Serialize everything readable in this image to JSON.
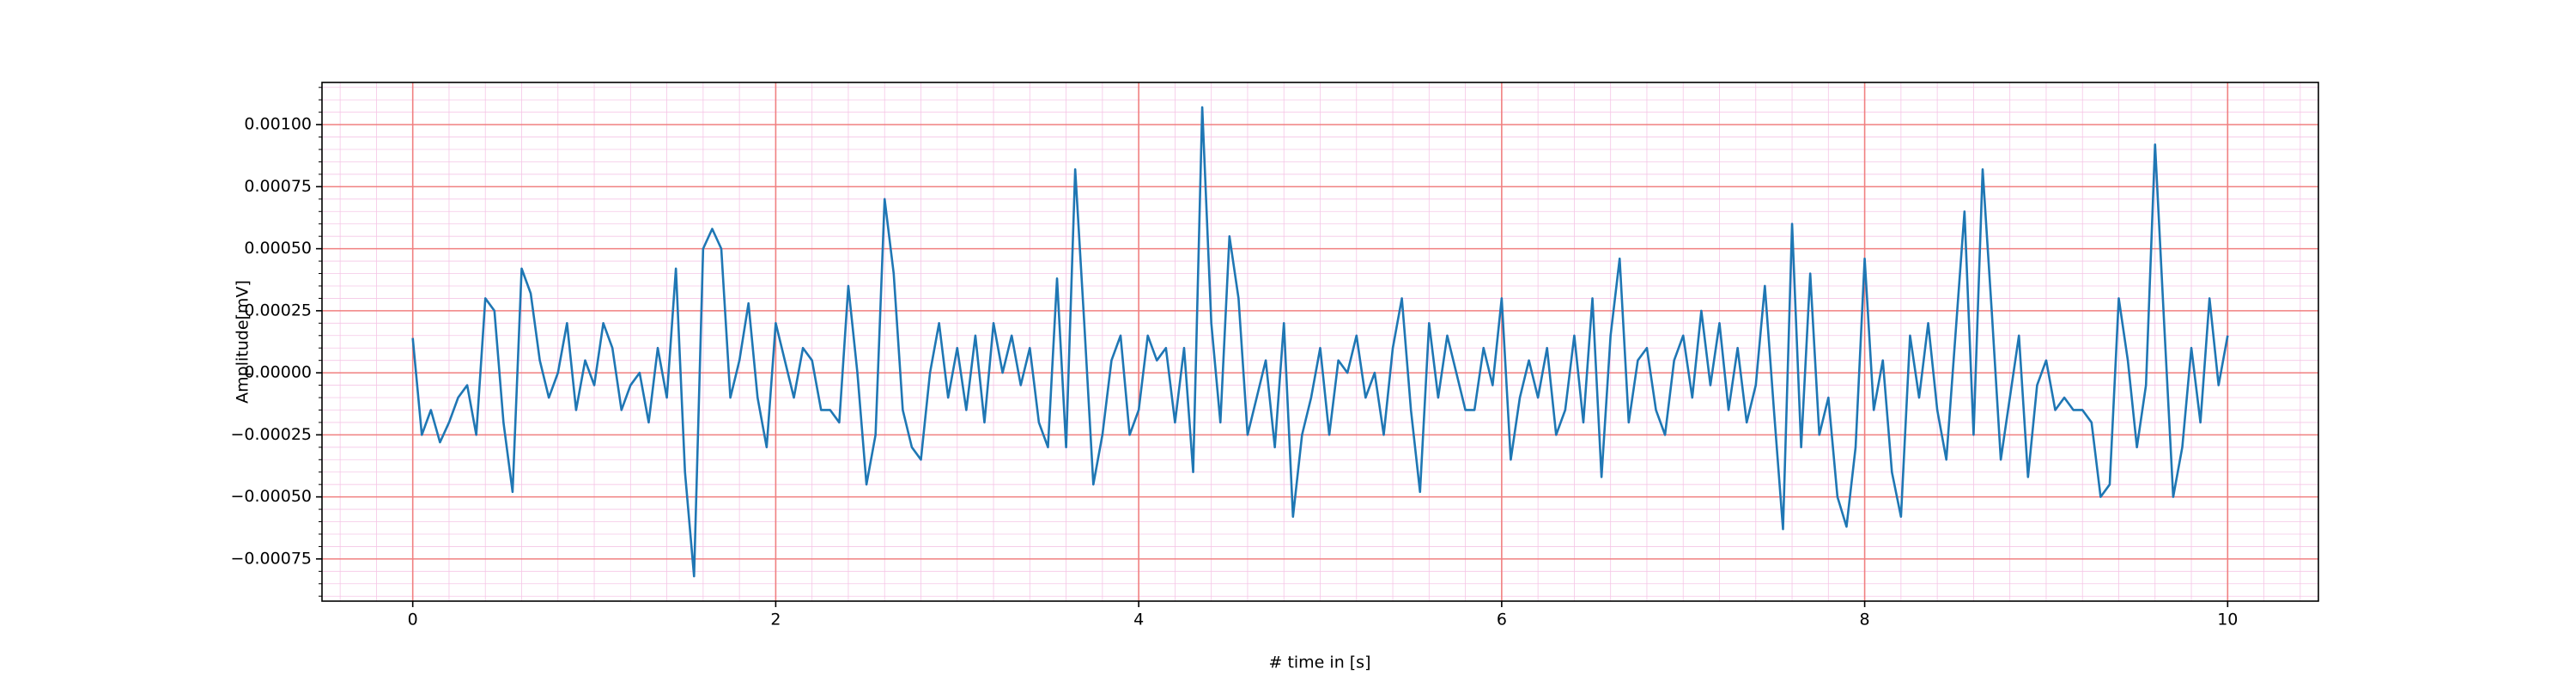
{
  "chart_data": {
    "type": "line",
    "xlabel": "# time in [s]",
    "ylabel": "Amplitude[mV]",
    "color": "#1f77b4",
    "grid": true,
    "xlim": [
      -0.5,
      10.5
    ],
    "ylim": [
      -0.00092,
      0.00117
    ],
    "xticks": [
      0,
      2,
      4,
      6,
      8,
      10
    ],
    "yticks": [
      {
        "value": -0.00075,
        "label": "−0.00075"
      },
      {
        "value": -0.0005,
        "label": "−0.00050"
      },
      {
        "value": -0.00025,
        "label": "−0.00025"
      },
      {
        "value": 0,
        "label": "0.00000"
      },
      {
        "value": 0.00025,
        "label": "0.00025"
      },
      {
        "value": 0.0005,
        "label": "0.00050"
      },
      {
        "value": 0.00075,
        "label": "0.00075"
      },
      {
        "value": 0.001,
        "label": "0.00100"
      }
    ],
    "x": [
      0,
      0.05,
      0.1,
      0.15,
      0.2,
      0.25,
      0.3,
      0.35,
      0.4,
      0.45,
      0.5,
      0.55,
      0.6,
      0.65,
      0.7,
      0.75,
      0.8,
      0.85,
      0.9,
      0.95,
      1,
      1.05,
      1.1,
      1.15,
      1.2,
      1.25,
      1.3,
      1.35,
      1.4,
      1.45,
      1.5,
      1.55,
      1.6,
      1.65,
      1.7,
      1.75,
      1.8,
      1.85,
      1.9,
      1.95,
      2,
      2.05,
      2.1,
      2.15,
      2.2,
      2.25,
      2.3,
      2.35,
      2.4,
      2.45,
      2.5,
      2.55,
      2.6,
      2.65,
      2.7,
      2.75,
      2.8,
      2.85,
      2.9,
      2.95,
      3,
      3.05,
      3.1,
      3.15,
      3.2,
      3.25,
      3.3,
      3.35,
      3.4,
      3.45,
      3.5,
      3.55,
      3.6,
      3.65,
      3.7,
      3.75,
      3.8,
      3.85,
      3.9,
      3.95,
      4,
      4.05,
      4.1,
      4.15,
      4.2,
      4.25,
      4.3,
      4.35,
      4.4,
      4.45,
      4.5,
      4.55,
      4.6,
      4.65,
      4.7,
      4.75,
      4.8,
      4.85,
      4.9,
      4.95,
      5,
      5.05,
      5.1,
      5.15,
      5.2,
      5.25,
      5.3,
      5.35,
      5.4,
      5.45,
      5.5,
      5.55,
      5.6,
      5.65,
      5.7,
      5.75,
      5.8,
      5.85,
      5.9,
      5.95,
      6,
      6.05,
      6.1,
      6.15,
      6.2,
      6.25,
      6.3,
      6.35,
      6.4,
      6.45,
      6.5,
      6.55,
      6.6,
      6.65,
      6.7,
      6.75,
      6.8,
      6.85,
      6.9,
      6.95,
      7,
      7.05,
      7.1,
      7.15,
      7.2,
      7.25,
      7.3,
      7.35,
      7.4,
      7.45,
      7.5,
      7.55,
      7.6,
      7.65,
      7.7,
      7.75,
      7.8,
      7.85,
      7.9,
      7.95,
      8,
      8.05,
      8.1,
      8.15,
      8.2,
      8.25,
      8.3,
      8.35,
      8.4,
      8.45,
      8.5,
      8.55,
      8.6,
      8.65,
      8.7,
      8.75,
      8.8,
      8.85,
      8.9,
      8.95,
      9,
      9.05,
      9.1,
      9.15,
      9.2,
      9.25,
      9.3,
      9.35,
      9.4,
      9.45,
      9.5,
      9.55,
      9.6,
      9.65,
      9.7,
      9.75,
      9.8,
      9.85,
      9.9,
      9.95,
      10
    ],
    "values": [
      0.00014,
      -0.00025,
      -0.00015,
      -0.00028,
      -0.0002,
      -0.0001,
      -5e-05,
      -0.00025,
      0.0003,
      0.00025,
      -0.0002,
      -0.00048,
      0.00042,
      0.00032,
      5e-05,
      -0.0001,
      0,
      0.0002,
      -0.00015,
      5e-05,
      -5e-05,
      0.0002,
      0.0001,
      -0.00015,
      -5e-05,
      0,
      -0.0002,
      0.0001,
      -0.0001,
      0.00042,
      -0.0004,
      -0.00082,
      0.0005,
      0.00058,
      0.0005,
      -0.0001,
      5e-05,
      0.00028,
      -0.0001,
      -0.0003,
      0.0002,
      5e-05,
      -0.0001,
      0.0001,
      5e-05,
      -0.00015,
      -0.00015,
      -0.0002,
      0.00035,
      0,
      -0.00045,
      -0.00025,
      0.0007,
      0.0004,
      -0.00015,
      -0.0003,
      -0.00035,
      0,
      0.0002,
      -0.0001,
      0.0001,
      -0.00015,
      0.00015,
      -0.0002,
      0.0002,
      0,
      0.00015,
      -5e-05,
      0.0001,
      -0.0002,
      -0.0003,
      0.00038,
      -0.0003,
      0.00082,
      0.0002,
      -0.00045,
      -0.00025,
      5e-05,
      0.00015,
      -0.00025,
      -0.00015,
      0.00015,
      5e-05,
      0.0001,
      -0.0002,
      0.0001,
      -0.0004,
      0.00107,
      0.0002,
      -0.0002,
      0.00055,
      0.0003,
      -0.00025,
      -0.0001,
      5e-05,
      -0.0003,
      0.0002,
      -0.00058,
      -0.00025,
      -0.0001,
      0.0001,
      -0.00025,
      5e-05,
      0,
      0.00015,
      -0.0001,
      0,
      -0.00025,
      0.0001,
      0.0003,
      -0.00015,
      -0.00048,
      0.0002,
      -0.0001,
      0.00015,
      0,
      -0.00015,
      -0.00015,
      0.0001,
      -5e-05,
      0.0003,
      -0.00035,
      -0.0001,
      5e-05,
      -0.0001,
      0.0001,
      -0.00025,
      -0.00015,
      0.00015,
      -0.0002,
      0.0003,
      -0.00042,
      0.00015,
      0.00046,
      -0.0002,
      5e-05,
      0.0001,
      -0.00015,
      -0.00025,
      5e-05,
      0.00015,
      -0.0001,
      0.00025,
      -5e-05,
      0.0002,
      -0.00015,
      0.0001,
      -0.0002,
      -5e-05,
      0.00035,
      -0.00015,
      -0.00063,
      0.0006,
      -0.0003,
      0.0004,
      -0.00025,
      -0.0001,
      -0.0005,
      -0.00062,
      -0.0003,
      0.00046,
      -0.00015,
      5e-05,
      -0.0004,
      -0.00058,
      0.00015,
      -0.0001,
      0.0002,
      -0.00015,
      -0.00035,
      0.00015,
      0.00065,
      -0.00025,
      0.00082,
      0.00025,
      -0.00035,
      -0.0001,
      0.00015,
      -0.00042,
      -5e-05,
      5e-05,
      -0.00015,
      -0.0001,
      -0.00015,
      -0.00015,
      -0.0002,
      -0.0005,
      -0.00045,
      0.0003,
      5e-05,
      -0.0003,
      -5e-05,
      0.00092,
      0.0002,
      -0.0005,
      -0.0003,
      0.0001,
      -0.0002,
      0.0003,
      -5e-05,
      0.00015
    ]
  }
}
